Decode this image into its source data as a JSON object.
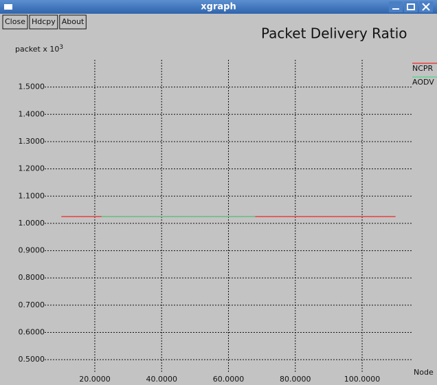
{
  "window": {
    "title": "xgraph",
    "buttons": [
      "Close",
      "Hdcpy",
      "About"
    ]
  },
  "chart_data": {
    "type": "line",
    "title": "Packet Delivery Ratio",
    "ylabel": "packet x 10",
    "ylabel_superscript": "3",
    "xlabel": "Node",
    "series": [
      {
        "name": "NCPR",
        "color": "#e8413c",
        "x": [
          10,
          110
        ],
        "values": [
          1.025,
          1.025
        ]
      },
      {
        "name": "AODV",
        "color": "#5ed494",
        "x": [
          22,
          68
        ],
        "values": [
          1.025,
          1.025
        ]
      }
    ],
    "xlim": [
      5,
      115
    ],
    "ylim": [
      0.45,
      1.6
    ],
    "xticks": [
      {
        "value": 20,
        "label": "20.0000"
      },
      {
        "value": 40,
        "label": "40.0000"
      },
      {
        "value": 60,
        "label": "60.0000"
      },
      {
        "value": 80,
        "label": "80.0000"
      },
      {
        "value": 100,
        "label": "100.0000"
      }
    ],
    "yticks": [
      {
        "value": 0.5,
        "label": "0.5000"
      },
      {
        "value": 0.6,
        "label": "0.6000"
      },
      {
        "value": 0.7,
        "label": "0.7000"
      },
      {
        "value": 0.8,
        "label": "0.8000"
      },
      {
        "value": 0.9,
        "label": "0.9000"
      },
      {
        "value": 1.0,
        "label": "1.0000"
      },
      {
        "value": 1.1,
        "label": "1.1000"
      },
      {
        "value": 1.2,
        "label": "1.2000"
      },
      {
        "value": 1.3,
        "label": "1.3000"
      },
      {
        "value": 1.4,
        "label": "1.4000"
      },
      {
        "value": 1.5,
        "label": "1.5000"
      }
    ],
    "grid": true,
    "legend": "upper right"
  }
}
